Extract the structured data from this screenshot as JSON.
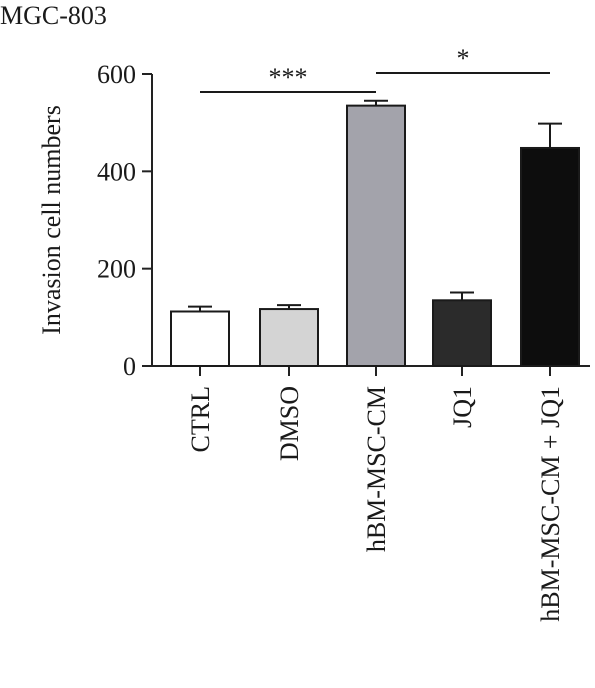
{
  "chart_data": {
    "type": "bar",
    "title": "MGC-803",
    "xlabel": "",
    "ylabel": "Invasion cell numbers",
    "ylim": [
      0,
      600
    ],
    "yticks": [
      0,
      200,
      400,
      600
    ],
    "grid": false,
    "categories": [
      "CTRL",
      "DMSO",
      "hBM-MSC-CM",
      "JQ1",
      "hBM-MSC-CM + JQ1"
    ],
    "values": [
      112,
      117,
      535,
      135,
      448
    ],
    "errors": [
      10,
      8,
      10,
      16,
      50
    ],
    "bar_colors": [
      "#ffffff",
      "#d4d4d4",
      "#a3a3ab",
      "#2b2b2b",
      "#0d0d0d"
    ],
    "significance": [
      {
        "from": "CTRL",
        "to": "hBM-MSC-CM",
        "label": "***"
      },
      {
        "from": "hBM-MSC-CM",
        "to": "hBM-MSC-CM + JQ1",
        "label": "*"
      }
    ]
  }
}
